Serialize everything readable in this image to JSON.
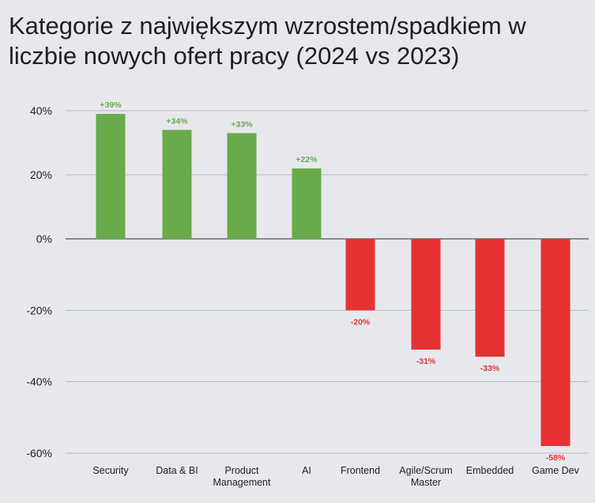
{
  "title": "Kategorie z największym wzrostem/spadkiem w liczbie nowych ofert pracy (2024 vs 2023)",
  "colors": {
    "positive": "#69aa4b",
    "negative": "#e63232",
    "grid": "#b4b9c2",
    "zero_line": "#555555",
    "background": "#e6e8ee"
  },
  "chart_data": {
    "type": "bar",
    "title": "Kategorie z największym wzrostem/spadkiem w liczbie nowych ofert pracy (2024 vs 2023)",
    "categories": [
      [
        "Security"
      ],
      [
        "Data & BI"
      ],
      [
        "Product",
        "Management"
      ],
      [
        "AI"
      ],
      [
        "Frontend"
      ],
      [
        "Agile/Scrum",
        "Master"
      ],
      [
        "Embedded"
      ],
      [
        "Game Dev"
      ]
    ],
    "values": [
      39,
      34,
      33,
      22,
      -20,
      -31,
      -33,
      -58
    ],
    "value_labels": [
      "+39%",
      "+34%",
      "+33%",
      "+22%",
      "-20%",
      "-31%",
      "-33%",
      "-58%"
    ],
    "yticks": [
      40,
      20,
      0,
      -20,
      -40,
      -60
    ],
    "ytick_labels": [
      "40%",
      "20%",
      "0%",
      "-20%",
      "-40%",
      "-60%"
    ],
    "ylim": [
      -60,
      40
    ],
    "xlabel": "",
    "ylabel": "",
    "grid": true,
    "legend": "none"
  }
}
